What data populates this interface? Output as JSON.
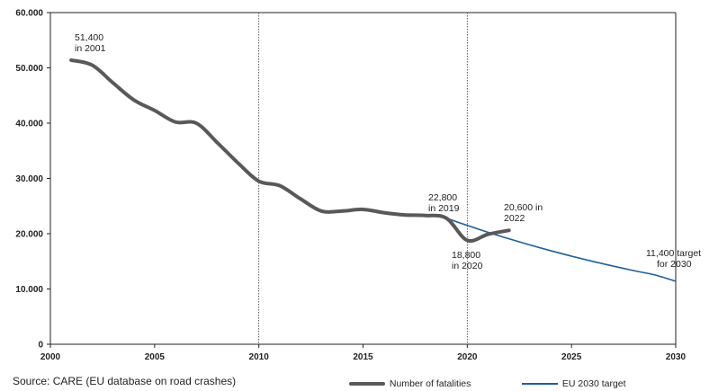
{
  "chart_data": {
    "type": "line",
    "title": "",
    "xlabel": "",
    "ylabel": "",
    "xlim": [
      2000,
      2030
    ],
    "ylim": [
      0,
      60000
    ],
    "x_ticks": [
      2000,
      2005,
      2010,
      2015,
      2020,
      2025,
      2030
    ],
    "x_tick_labels": [
      "2000",
      "2005",
      "2010",
      "2015",
      "2020",
      "2025",
      "2030"
    ],
    "y_ticks": [
      0,
      10000,
      20000,
      30000,
      40000,
      50000,
      60000
    ],
    "y_tick_labels": [
      "0",
      "10.000",
      "20.000",
      "30.000",
      "40.000",
      "50.000",
      "60.000"
    ],
    "reference_lines_x": [
      2010,
      2020
    ],
    "grid": false,
    "legend_position": "bottom",
    "series": [
      {
        "name": "Number of fatalities",
        "color": "#595959",
        "x": [
          2001,
          2002,
          2003,
          2004,
          2005,
          2006,
          2007,
          2008,
          2009,
          2010,
          2011,
          2012,
          2013,
          2014,
          2015,
          2016,
          2017,
          2018,
          2019,
          2020,
          2021,
          2022
        ],
        "y": [
          51400,
          50500,
          47300,
          44200,
          42300,
          40200,
          40000,
          36500,
          32800,
          29500,
          28700,
          26300,
          24100,
          24100,
          24400,
          23800,
          23400,
          23300,
          22800,
          18800,
          19900,
          20600
        ]
      },
      {
        "name": "EU 2030 target",
        "color": "#1f5f99",
        "x": [
          2019,
          2020,
          2021,
          2022,
          2023,
          2024,
          2025,
          2026,
          2027,
          2028,
          2029,
          2030
        ],
        "y": [
          22800,
          21500,
          20250,
          19080,
          17970,
          16920,
          15940,
          15010,
          14140,
          13310,
          12540,
          11400
        ]
      }
    ],
    "annotations": [
      {
        "lines": [
          "51,400",
          "in 2001"
        ]
      },
      {
        "lines": [
          "22,800",
          "in 2019"
        ]
      },
      {
        "lines": [
          "18,800",
          "in 2020"
        ]
      },
      {
        "lines": [
          "20,600 in",
          "2022"
        ]
      },
      {
        "lines": [
          "11,400 target",
          "for 2030"
        ]
      }
    ]
  },
  "source_text": "Source: CARE (EU database on road crashes)"
}
